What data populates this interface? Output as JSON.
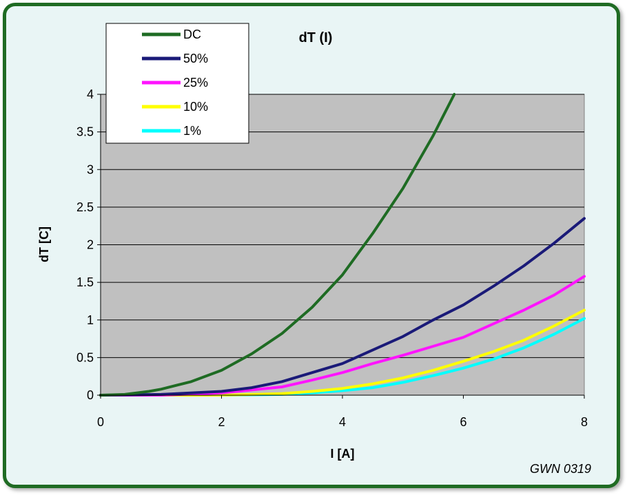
{
  "chart_data": {
    "type": "line",
    "title": "dT (I)",
    "xlabel": "I [A]",
    "ylabel": "dT  [C]",
    "xlim": [
      0,
      8
    ],
    "ylim": [
      0,
      4
    ],
    "xticks": [
      0,
      2,
      4,
      6,
      8
    ],
    "yticks": [
      0,
      0.5,
      1,
      1.5,
      2,
      2.5,
      3,
      3.5,
      4
    ],
    "grid": "horizontal",
    "plot_background": "#c0c0c0",
    "legend_position": "top-left",
    "annotation": "GWN 0319",
    "series": [
      {
        "name": "DC",
        "color": "#1e6b23",
        "x": [
          0,
          0.4,
          0.8,
          1.0,
          1.5,
          2.0,
          2.5,
          3.0,
          3.5,
          4.0,
          4.5,
          5.0,
          5.5,
          5.85
        ],
        "y": [
          0,
          0.01,
          0.05,
          0.08,
          0.18,
          0.33,
          0.55,
          0.82,
          1.17,
          1.6,
          2.15,
          2.75,
          3.45,
          4.0
        ]
      },
      {
        "name": "50%",
        "color": "#1a1a78",
        "x": [
          0,
          1.0,
          2.0,
          2.5,
          3.0,
          3.5,
          4.0,
          4.5,
          5.0,
          5.5,
          6.0,
          6.5,
          7.0,
          7.5,
          8.0
        ],
        "y": [
          0,
          0.01,
          0.05,
          0.1,
          0.18,
          0.3,
          0.42,
          0.6,
          0.78,
          1.0,
          1.2,
          1.45,
          1.72,
          2.02,
          2.35
        ]
      },
      {
        "name": "25%",
        "color": "#ff14ff",
        "x": [
          0,
          1.0,
          2.0,
          3.0,
          3.5,
          4.0,
          4.5,
          5.0,
          5.5,
          6.0,
          6.5,
          7.0,
          7.5,
          8.0
        ],
        "y": [
          0,
          0.0,
          0.03,
          0.11,
          0.2,
          0.3,
          0.42,
          0.53,
          0.65,
          0.77,
          0.95,
          1.13,
          1.33,
          1.58
        ]
      },
      {
        "name": "10%",
        "color": "#ffff00",
        "x": [
          0.4,
          2.0,
          3.0,
          3.5,
          4.0,
          4.5,
          5.0,
          5.5,
          6.0,
          6.5,
          7.0,
          7.5,
          8.0
        ],
        "y": [
          0,
          0.0,
          0.02,
          0.05,
          0.09,
          0.15,
          0.23,
          0.33,
          0.45,
          0.58,
          0.73,
          0.92,
          1.13
        ]
      },
      {
        "name": "1%",
        "color": "#00ffff",
        "x": [
          0.4,
          2.0,
          3.0,
          3.5,
          4.0,
          4.5,
          5.0,
          5.5,
          6.0,
          6.5,
          7.0,
          7.5,
          8.0
        ],
        "y": [
          0,
          0.0,
          0.01,
          0.03,
          0.06,
          0.1,
          0.17,
          0.26,
          0.36,
          0.48,
          0.63,
          0.81,
          1.02
        ]
      }
    ]
  }
}
